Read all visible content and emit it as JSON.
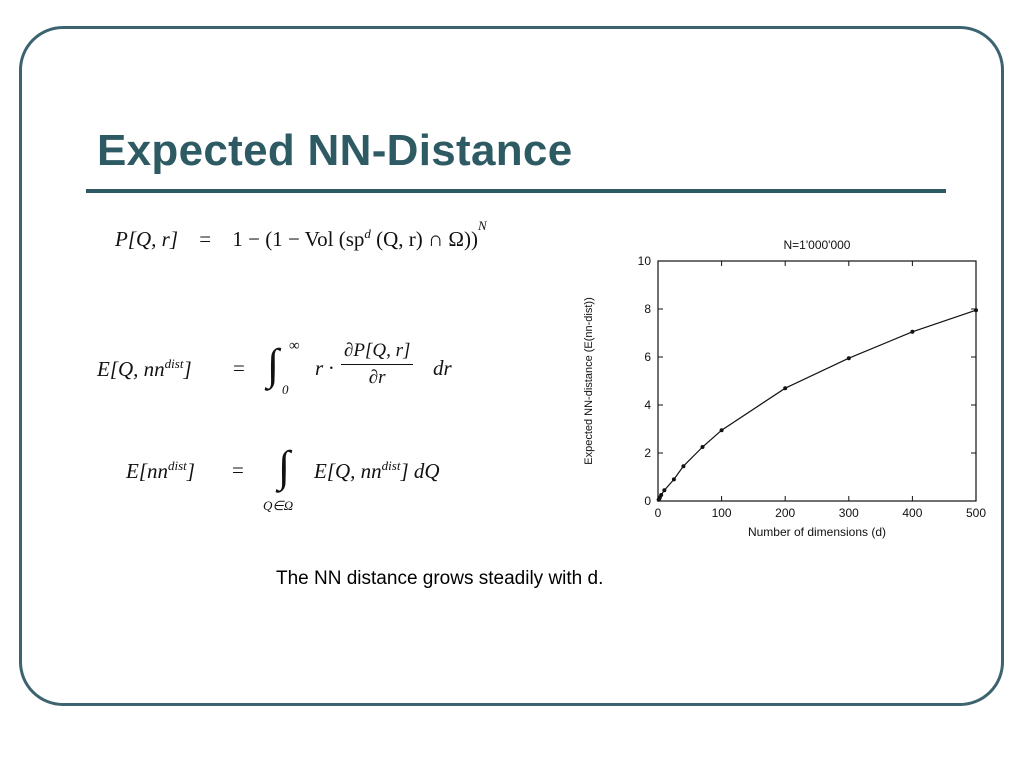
{
  "slide": {
    "title": "Expected NN-Distance",
    "caption": "The NN distance grows steadily with d."
  },
  "formulas": {
    "f1": {
      "lhs": "P[Q, r]",
      "eq": "=",
      "rhs_a": "1 − (1 − Vol (sp",
      "rhs_sup": "d",
      "rhs_b": "(Q, r) ∩ Ω))",
      "rhs_exp": "N"
    },
    "f2": {
      "lhs_a": "E[Q, nn",
      "lhs_sup": "dist",
      "lhs_b": "]",
      "eq": "=",
      "integral": "∫",
      "upper": "∞",
      "lower": "0",
      "factor": "r ·",
      "numerator": "∂P[Q, r]",
      "denominator": "∂r",
      "dr": "dr"
    },
    "f3": {
      "lhs_a": "E[nn",
      "lhs_sup": "dist",
      "lhs_b": "]",
      "eq": "=",
      "integral": "∫",
      "lower": "Q∈Ω",
      "rhs_a": "E[Q, nn",
      "rhs_sup": "dist",
      "rhs_b": "] dQ"
    }
  },
  "chart_data": {
    "type": "line",
    "title": "N=1'000'000",
    "xlabel": "Number of dimensions (d)",
    "ylabel": "Expected NN-distance (E(nn-dist))",
    "xlim": [
      0,
      500
    ],
    "ylim": [
      0,
      10
    ],
    "xticks": [
      0,
      100,
      200,
      300,
      400,
      500
    ],
    "yticks": [
      0,
      2,
      4,
      6,
      8,
      10
    ],
    "grid": false,
    "markers": true,
    "series": [
      {
        "name": "",
        "x": [
          1,
          2,
          3,
          5,
          10,
          25,
          40,
          70,
          100,
          200,
          300,
          400,
          500
        ],
        "y": [
          0.05,
          0.1,
          0.15,
          0.25,
          0.45,
          0.9,
          1.45,
          2.25,
          2.95,
          4.7,
          5.95,
          7.05,
          7.95
        ]
      }
    ],
    "line_color": "#111111"
  }
}
